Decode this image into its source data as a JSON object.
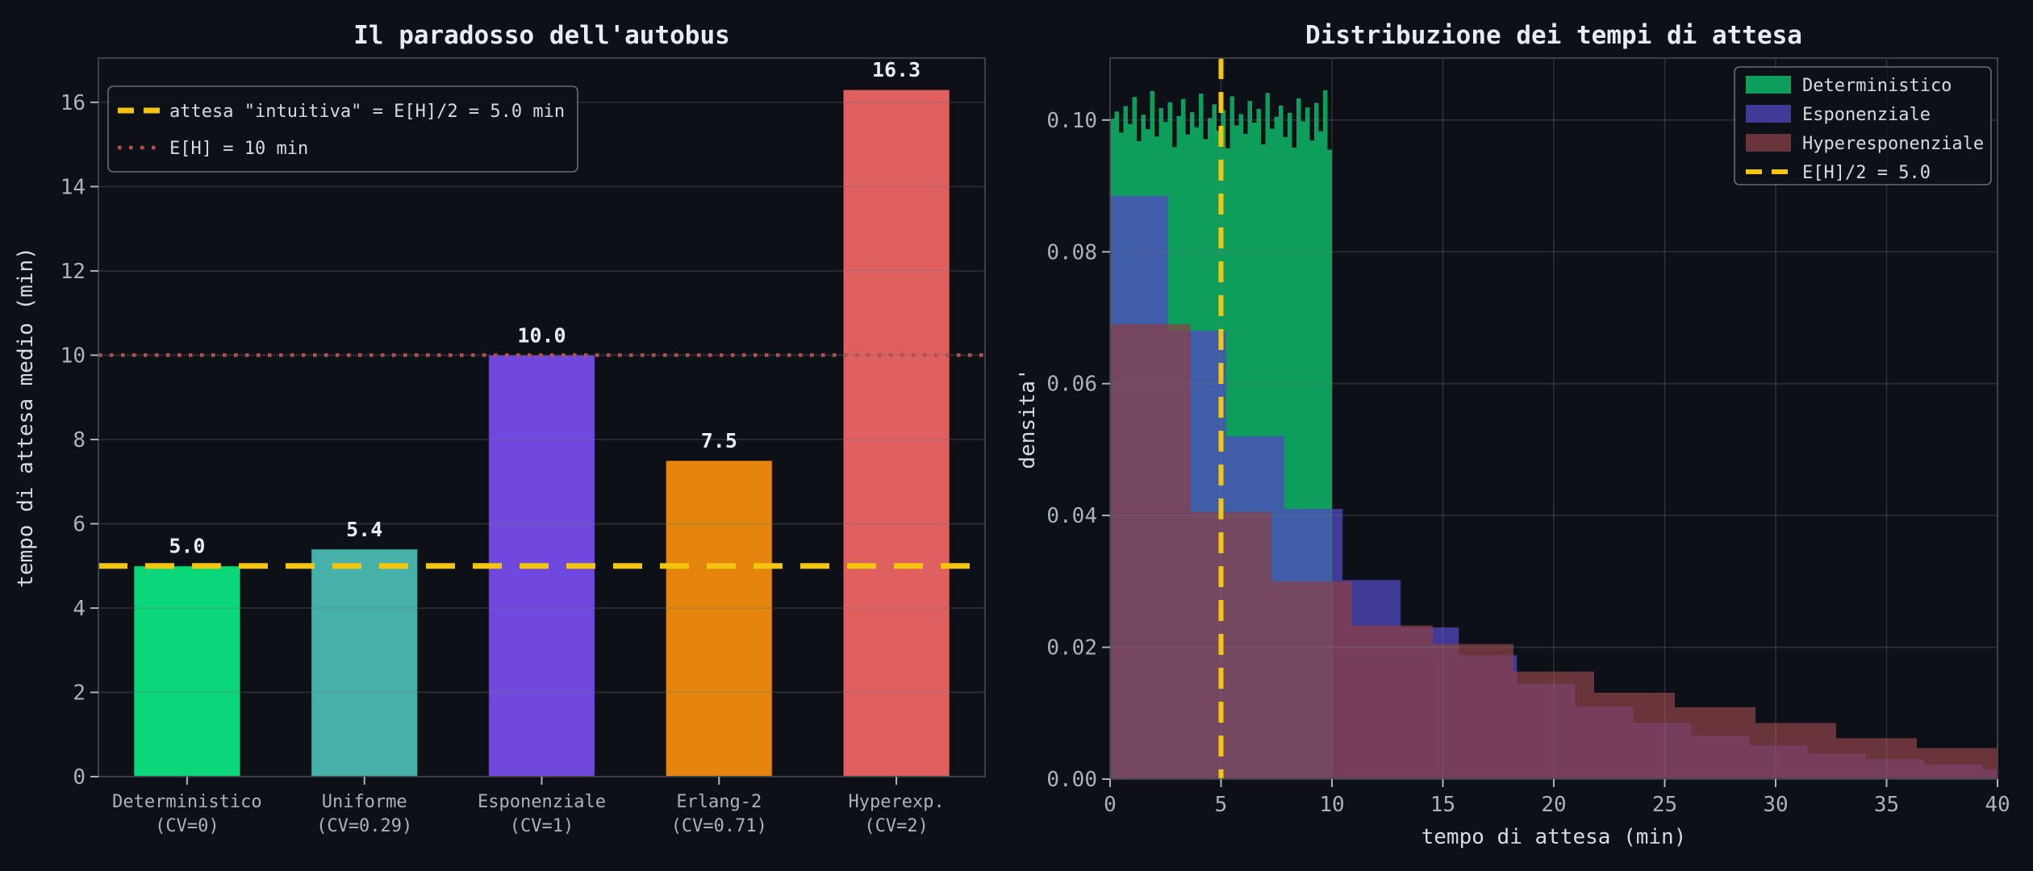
{
  "figure": {
    "background": "#0d1117",
    "title_color": "#e8ecf1",
    "text_color": "#d6dbe1",
    "tick_color": "#aab2bb",
    "grid_color": "rgba(108,118,128,0.32)",
    "spine_color": "#3f454d",
    "legend_border": "#676e76",
    "value_label_color": "#e9edf1"
  },
  "chart_data": [
    {
      "type": "bar",
      "title": "Il paradosso dell'autobus",
      "xlabel": "",
      "ylabel": "tempo di attesa medio (min)",
      "ylim": [
        0,
        17.05
      ],
      "yticks": [
        0,
        2,
        4,
        6,
        8,
        10,
        12,
        14,
        16
      ],
      "grid": "horizontal",
      "categories": [
        {
          "label": "Deterministico",
          "sublabel": "(CV=0)"
        },
        {
          "label": "Uniforme",
          "sublabel": "(CV=0.29)"
        },
        {
          "label": "Esponenziale",
          "sublabel": "(CV=1)"
        },
        {
          "label": "Erlang-2",
          "sublabel": "(CV=0.71)"
        },
        {
          "label": "Hyperexp.",
          "sublabel": "(CV=2)"
        }
      ],
      "values": [
        5.0,
        5.4,
        10.0,
        7.5,
        16.3
      ],
      "value_labels": [
        "5.0",
        "5.4",
        "10.0",
        "7.5",
        "16.3"
      ],
      "bar_colors": [
        "#0bd678",
        "#45b1a8",
        "#6f48dd",
        "#e4860d",
        "#e05f5f"
      ],
      "hlines": [
        {
          "y": 5.0,
          "color": "#f3c50f",
          "dash": "36 22",
          "width": 7,
          "label": "attesa \"intuitiva\" = E[H]/2 = 5.0 min"
        },
        {
          "y": 10.0,
          "color": "#b05252",
          "dash": "4.5 9.5",
          "width": 4.5,
          "label": "E[H] = 10 min"
        }
      ],
      "legend_position": "upper-left"
    },
    {
      "type": "histogram",
      "title": "Distribuzione dei tempi di attesa",
      "xlabel": "tempo di attesa (min)",
      "ylabel": "densita'",
      "xlim": [
        0,
        40
      ],
      "ylim": [
        0,
        0.1094
      ],
      "xticks": [
        0,
        5,
        10,
        15,
        20,
        25,
        30,
        35,
        40
      ],
      "yticks": [
        {
          "v": 0.0,
          "label": "0.00"
        },
        {
          "v": 0.02,
          "label": "0.02"
        },
        {
          "v": 0.04,
          "label": "0.04"
        },
        {
          "v": 0.06,
          "label": "0.06"
        },
        {
          "v": 0.08,
          "label": "0.08"
        },
        {
          "v": 0.1,
          "label": "0.10"
        }
      ],
      "grid": "both",
      "fill_alpha": 0.75,
      "series": [
        {
          "name": "Deterministico",
          "color": "#0fcd74",
          "bin_start": 0,
          "bin_width": 0.2,
          "heights": [
            0.1002,
            0.1013,
            0.0981,
            0.1021,
            0.0994,
            0.1035,
            0.0968,
            0.1008,
            0.0986,
            0.1044,
            0.0975,
            0.1018,
            0.0997,
            0.1027,
            0.0959,
            0.1006,
            0.1032,
            0.0978,
            0.1012,
            0.0989,
            0.104,
            0.0971,
            0.1003,
            0.1024,
            0.0984,
            0.1015,
            0.0957,
            0.1036,
            0.0992,
            0.1009,
            0.0979,
            0.1029,
            0.0996,
            0.1017,
            0.0963,
            0.1041,
            0.0987,
            0.1005,
            0.1022,
            0.0974,
            0.1011,
            0.0958,
            0.1033,
            0.0998,
            0.1019,
            0.0969,
            0.1026,
            0.0983,
            0.1045,
            0.0955
          ]
        },
        {
          "name": "Esponenziale",
          "color": "#5048c0",
          "bin_start": 0,
          "bin_width": 2.62,
          "heights": [
            0.0885,
            0.068,
            0.052,
            0.041,
            0.0302,
            0.023,
            0.0188,
            0.0145,
            0.011,
            0.0085,
            0.0066,
            0.0051,
            0.0039,
            0.003,
            0.0022,
            0.0015
          ]
        },
        {
          "name": "Hyperesponenziale",
          "color": "#8a4048",
          "bin_start": 0,
          "bin_width": 3.6364,
          "heights": [
            0.069,
            0.0405,
            0.03,
            0.0233,
            0.0205,
            0.0163,
            0.0131,
            0.0109,
            0.0085,
            0.0062,
            0.0047
          ]
        }
      ],
      "vline": {
        "x": 5.0,
        "color": "#f3c50f",
        "dash": "26 16",
        "width": 6,
        "label": "E[H]/2 = 5.0"
      },
      "legend_position": "upper-right"
    }
  ]
}
